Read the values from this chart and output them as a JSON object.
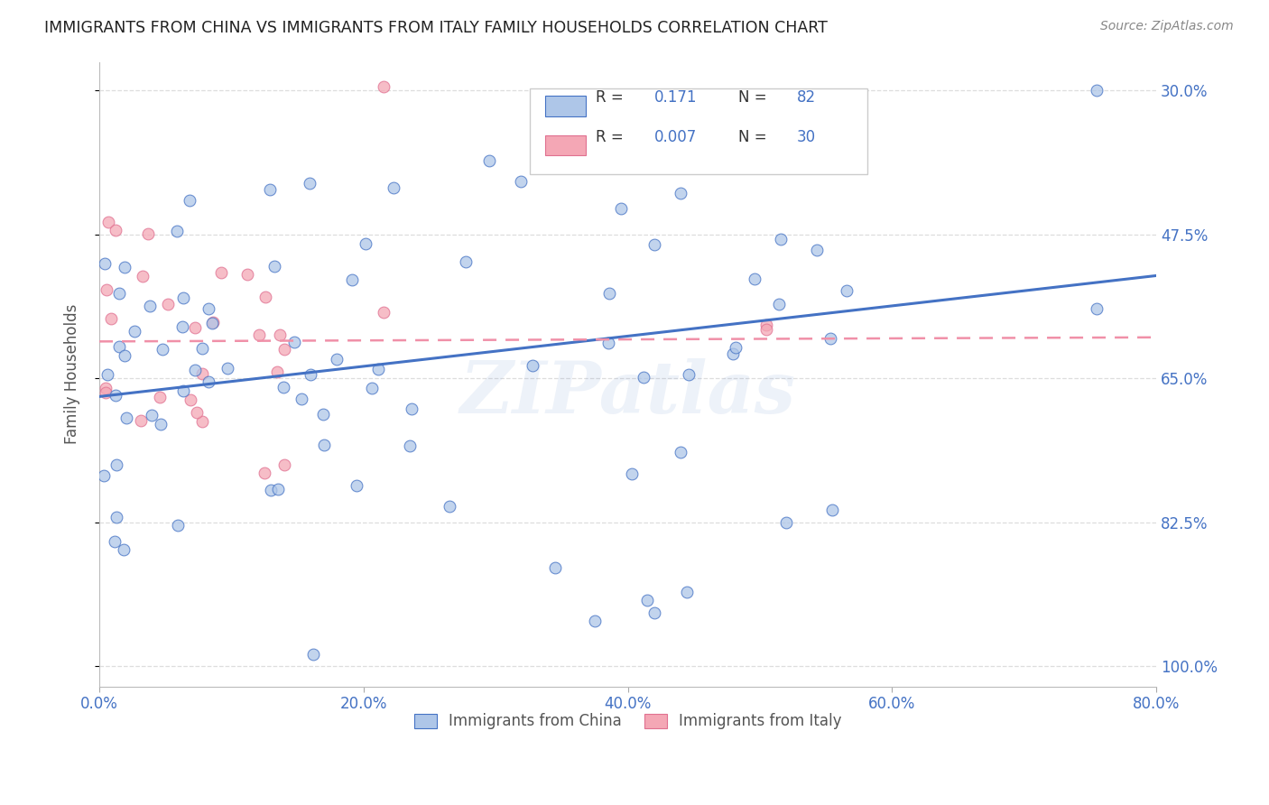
{
  "title": "IMMIGRANTS FROM CHINA VS IMMIGRANTS FROM ITALY FAMILY HOUSEHOLDS CORRELATION CHART",
  "source": "Source: ZipAtlas.com",
  "ylabel": "Family Households",
  "y_right_labels": [
    "100.0%",
    "82.5%",
    "65.0%",
    "47.5%",
    "30.0%"
  ],
  "xlim": [
    0.0,
    0.8
  ],
  "ylim": [
    0.275,
    1.035
  ],
  "yticks": [
    0.3,
    0.475,
    0.65,
    0.825,
    1.0
  ],
  "xticks": [
    0.0,
    0.2,
    0.4,
    0.6,
    0.8
  ],
  "xtick_labels": [
    "0.0%",
    "20.0%",
    "40.0%",
    "60.0%",
    "80.0%"
  ],
  "china_color": "#aec6e8",
  "italy_color": "#f4a7b5",
  "china_line_color": "#4472c4",
  "italy_line_color": "#f090a8",
  "china_R": 0.171,
  "china_N": 82,
  "italy_R": 0.007,
  "italy_N": 30,
  "watermark": "ZIPatlas",
  "title_color": "#222222",
  "axis_label_color": "#4472c4",
  "legend_label_china": "Immigrants from China",
  "legend_label_italy": "Immigrants from Italy",
  "background_color": "#ffffff",
  "grid_color": "#dddddd",
  "marker_size_pts": 85,
  "marker_alpha": 0.75,
  "china_line_y0": 0.628,
  "china_line_y1": 0.775,
  "italy_line_y0": 0.695,
  "italy_line_y1": 0.7
}
